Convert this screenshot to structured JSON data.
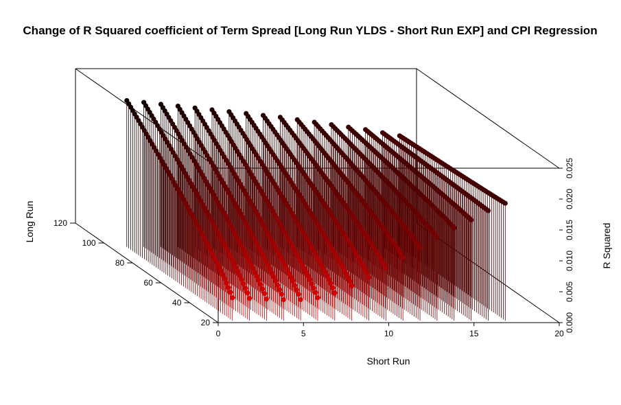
{
  "chart_data": {
    "type": "scatter3d",
    "title": "Change of R Squared coefficient of Term Spread [Long Run YLDS - Short Run EXP] and CPI Regression",
    "xlabel": "Short Run",
    "ylabel": "Long Run",
    "zlabel": "R Squared",
    "xlim": [
      0,
      20
    ],
    "ylim": [
      20,
      120
    ],
    "zlim": [
      0,
      0.025
    ],
    "x_ticks": [
      "0",
      "5",
      "10",
      "15",
      "20"
    ],
    "y_ticks": [
      "20",
      "40",
      "60",
      "80",
      "100",
      "120"
    ],
    "z_ticks": [
      "0.000",
      "0.005",
      "0.010",
      "0.015",
      "0.020",
      "0.025"
    ],
    "point_style": "type h (vertical drop lines) with filled circles",
    "color_gradient": {
      "low": "#ff0000",
      "high": "#000000"
    },
    "series": [
      {
        "x": 1,
        "y_range": [
          22,
          96
        ],
        "z_start": 0.0037,
        "z_end": 0.0237
      },
      {
        "x": 2,
        "y_range": [
          22,
          96
        ],
        "z_start": 0.0036,
        "z_end": 0.0234
      },
      {
        "x": 3,
        "y_range": [
          22,
          96
        ],
        "z_start": 0.0035,
        "z_end": 0.0231
      },
      {
        "x": 4,
        "y_range": [
          22,
          96
        ],
        "z_start": 0.0034,
        "z_end": 0.0228
      },
      {
        "x": 5,
        "y_range": [
          22,
          96
        ],
        "z_start": 0.0034,
        "z_end": 0.0225
      },
      {
        "x": 6,
        "y_range": [
          22,
          96
        ],
        "z_start": 0.0037,
        "z_end": 0.0222
      },
      {
        "x": 7,
        "y_range": [
          22,
          96
        ],
        "z_start": 0.0045,
        "z_end": 0.0219
      },
      {
        "x": 8,
        "y_range": [
          22,
          96
        ],
        "z_start": 0.0056,
        "z_end": 0.0216
      },
      {
        "x": 9,
        "y_range": [
          22,
          96
        ],
        "z_start": 0.007,
        "z_end": 0.0213
      },
      {
        "x": 10,
        "y_range": [
          22,
          96
        ],
        "z_start": 0.0085,
        "z_end": 0.021
      },
      {
        "x": 11,
        "y_range": [
          22,
          96
        ],
        "z_start": 0.0102,
        "z_end": 0.0206
      },
      {
        "x": 12,
        "y_range": [
          22,
          96
        ],
        "z_start": 0.0118,
        "z_end": 0.0202
      },
      {
        "x": 13,
        "y_range": [
          22,
          96
        ],
        "z_start": 0.0135,
        "z_end": 0.0198
      },
      {
        "x": 14,
        "y_range": [
          22,
          96
        ],
        "z_start": 0.015,
        "z_end": 0.0194
      },
      {
        "x": 15,
        "y_range": [
          22,
          96
        ],
        "z_start": 0.0163,
        "z_end": 0.019
      },
      {
        "x": 16,
        "y_range": [
          22,
          96
        ],
        "z_start": 0.0178,
        "z_end": 0.0185
      },
      {
        "x": 17,
        "y_range": [
          22,
          96
        ],
        "z_start": 0.019,
        "z_end": 0.018
      }
    ]
  }
}
